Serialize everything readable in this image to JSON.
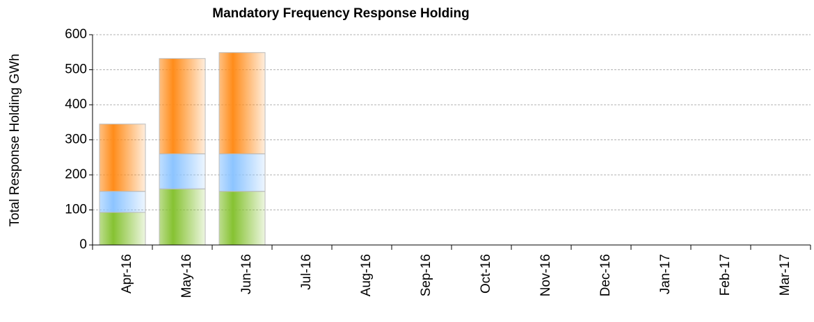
{
  "chart_data": {
    "type": "stacked_bar",
    "title": "Mandatory Frequency Response Holding",
    "y_label": "Total Response Holding GWh",
    "categories": [
      "Apr-16",
      "May-16",
      "Jun-16",
      "Jul-16",
      "Aug-16",
      "Sep-16",
      "Oct-16",
      "Nov-16",
      "Dec-16",
      "Jan-17",
      "Feb-17",
      "Mar-17"
    ],
    "series": [
      {
        "color": "#86c232",
        "values": [
          93,
          160,
          153,
          null,
          null,
          null,
          null,
          null,
          null,
          null,
          null,
          null
        ]
      },
      {
        "color": "#8cc4ff",
        "values": [
          60,
          100,
          107,
          null,
          null,
          null,
          null,
          null,
          null,
          null,
          null,
          null
        ]
      },
      {
        "color": "#ff8c1a",
        "values": [
          192,
          272,
          289,
          null,
          null,
          null,
          null,
          null,
          null,
          null,
          null,
          null
        ]
      }
    ],
    "ylim": [
      0,
      600
    ],
    "yticks": [
      0,
      100,
      200,
      300,
      400,
      500,
      600
    ],
    "grid": true
  }
}
